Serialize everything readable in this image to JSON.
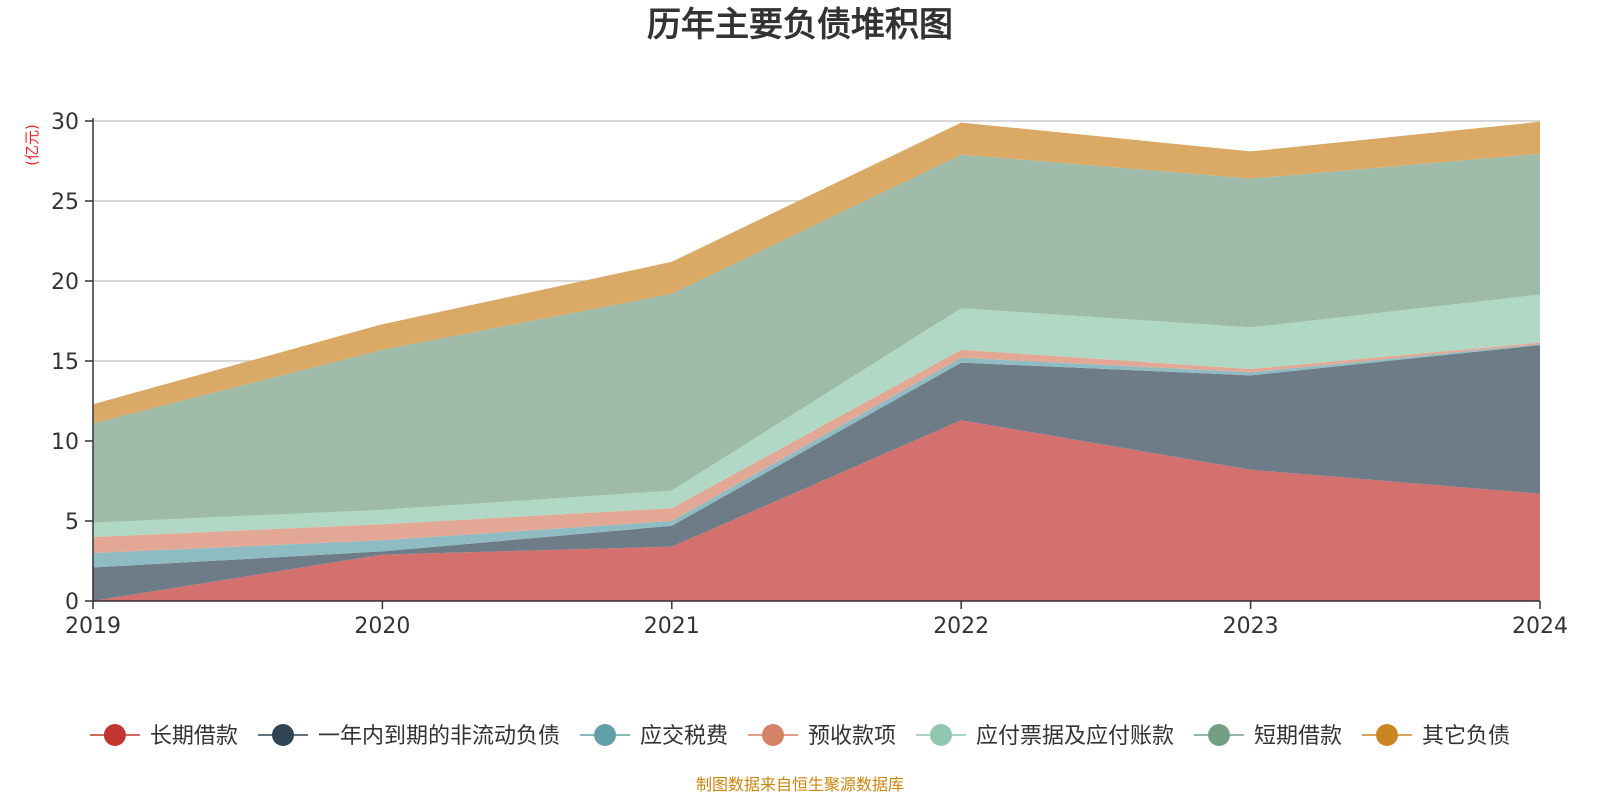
{
  "chart_data": {
    "type": "area",
    "stacked": true,
    "title": "历年主要负债堆积图",
    "unit_label": "(亿元)",
    "source": "制图数据来自恒生聚源数据库",
    "categories": [
      "2019",
      "2020",
      "2021",
      "2022",
      "2023",
      "2024"
    ],
    "ylim": [
      0,
      30
    ],
    "yticks": [
      0,
      5,
      10,
      15,
      20,
      25,
      30
    ],
    "grid": true,
    "legend_position": "bottom",
    "series": [
      {
        "name": "长期借款",
        "color": "#c23531",
        "fill": "#d4706d",
        "values": [
          0.0,
          2.9,
          3.4,
          11.3,
          8.2,
          6.7
        ]
      },
      {
        "name": "一年内到期的非流动负债",
        "color": "#2f4554",
        "fill": "#6e7c88",
        "values": [
          2.1,
          0.2,
          1.3,
          3.6,
          5.9,
          9.3
        ]
      },
      {
        "name": "应交税费",
        "color": "#61a0a8",
        "fill": "#8fbcc2",
        "values": [
          0.9,
          0.7,
          0.3,
          0.3,
          0.2,
          0.05
        ]
      },
      {
        "name": "预收款项",
        "color": "#d48265",
        "fill": "#e2a795",
        "values": [
          1.0,
          1.0,
          0.8,
          0.5,
          0.2,
          0.1
        ]
      },
      {
        "name": "应付票据及应付账款",
        "color": "#91c7ae",
        "fill": "#b0d8c4",
        "values": [
          0.9,
          0.9,
          1.1,
          2.6,
          2.6,
          3.0
        ]
      },
      {
        "name": "短期借款",
        "color": "#749f83",
        "fill": "#9dbba8",
        "values": [
          6.2,
          10.0,
          12.3,
          9.6,
          9.3,
          8.8
        ]
      },
      {
        "name": "其它负债",
        "color": "#ca8622",
        "fill": "#d9a965",
        "values": [
          1.2,
          1.6,
          2.0,
          2.0,
          1.7,
          2.0
        ]
      }
    ]
  }
}
